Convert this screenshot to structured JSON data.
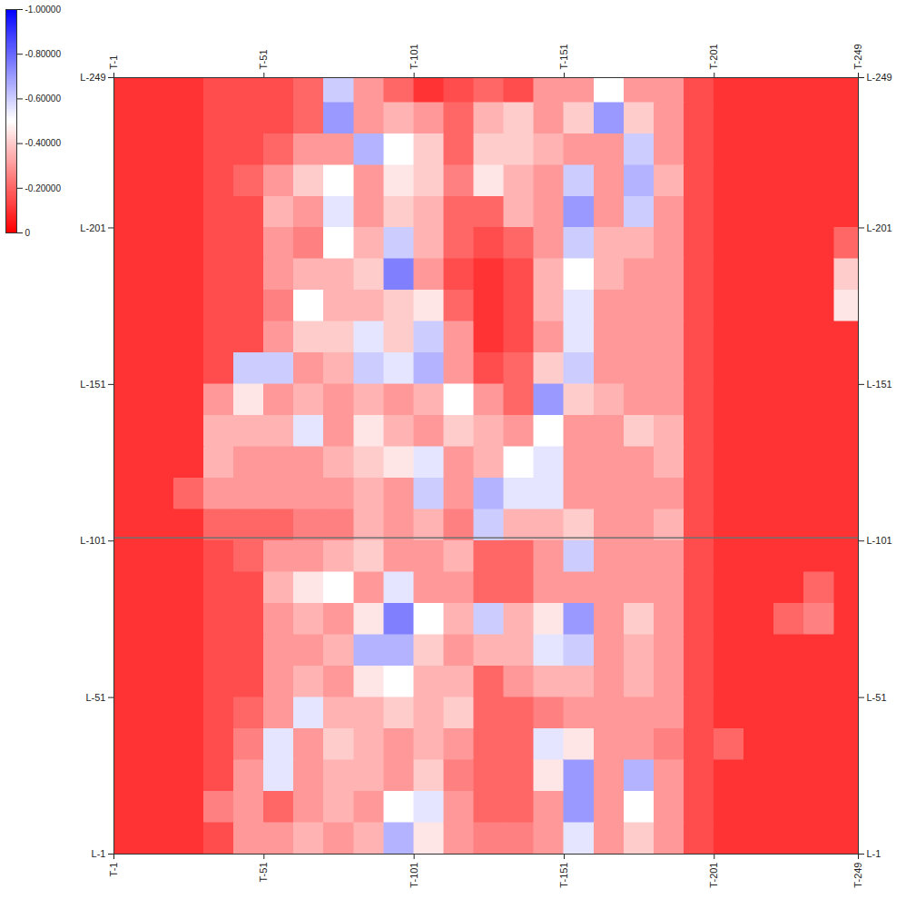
{
  "chart_data": {
    "type": "heatmap",
    "x": [
      1,
      11,
      21,
      31,
      41,
      51,
      61,
      71,
      81,
      91,
      101,
      111,
      121,
      131,
      141,
      151,
      161,
      171,
      181,
      191,
      201,
      211,
      221,
      231,
      241,
      249
    ],
    "y": [
      249,
      241,
      231,
      221,
      211,
      201,
      191,
      181,
      171,
      161,
      151,
      141,
      131,
      121,
      111,
      101,
      91,
      81,
      71,
      61,
      51,
      41,
      31,
      21,
      11,
      1
    ],
    "values": [
      [
        -0.1,
        -0.1,
        -0.1,
        -0.15,
        -0.15,
        -0.15,
        -0.2,
        -0.6,
        -0.3,
        -0.2,
        -0.1,
        -0.15,
        -0.2,
        -0.15,
        -0.3,
        -0.3,
        -0.5,
        -0.3,
        -0.3,
        -0.15,
        -0.1,
        -0.1,
        -0.1,
        -0.1,
        -0.1
      ],
      [
        -0.1,
        -0.1,
        -0.1,
        -0.15,
        -0.15,
        -0.15,
        -0.2,
        -0.7,
        -0.3,
        -0.35,
        -0.3,
        -0.2,
        -0.35,
        -0.4,
        -0.3,
        -0.4,
        -0.7,
        -0.4,
        -0.3,
        -0.15,
        -0.1,
        -0.1,
        -0.1,
        -0.1,
        -0.1
      ],
      [
        -0.1,
        -0.1,
        -0.1,
        -0.15,
        -0.15,
        -0.2,
        -0.3,
        -0.3,
        -0.65,
        -0.5,
        -0.4,
        -0.2,
        -0.4,
        -0.4,
        -0.35,
        -0.3,
        -0.3,
        -0.6,
        -0.3,
        -0.15,
        -0.1,
        -0.1,
        -0.1,
        -0.1,
        -0.1
      ],
      [
        -0.1,
        -0.1,
        -0.1,
        -0.15,
        -0.2,
        -0.3,
        -0.4,
        -0.5,
        -0.3,
        -0.45,
        -0.4,
        -0.25,
        -0.45,
        -0.35,
        -0.3,
        -0.6,
        -0.3,
        -0.65,
        -0.35,
        -0.15,
        -0.1,
        -0.1,
        -0.1,
        -0.1,
        -0.1
      ],
      [
        -0.1,
        -0.1,
        -0.1,
        -0.15,
        -0.15,
        -0.35,
        -0.3,
        -0.55,
        -0.3,
        -0.4,
        -0.35,
        -0.2,
        -0.2,
        -0.35,
        -0.3,
        -0.7,
        -0.3,
        -0.6,
        -0.3,
        -0.15,
        -0.1,
        -0.1,
        -0.1,
        -0.1,
        -0.1
      ],
      [
        -0.1,
        -0.1,
        -0.1,
        -0.15,
        -0.15,
        -0.3,
        -0.25,
        -0.5,
        -0.35,
        -0.6,
        -0.35,
        -0.2,
        -0.15,
        -0.2,
        -0.3,
        -0.6,
        -0.35,
        -0.35,
        -0.3,
        -0.15,
        -0.1,
        -0.1,
        -0.1,
        -0.1,
        -0.2
      ],
      [
        -0.1,
        -0.1,
        -0.1,
        -0.15,
        -0.15,
        -0.3,
        -0.35,
        -0.35,
        -0.4,
        -0.75,
        -0.3,
        -0.15,
        -0.1,
        -0.15,
        -0.35,
        -0.5,
        -0.35,
        -0.3,
        -0.3,
        -0.15,
        -0.1,
        -0.1,
        -0.1,
        -0.1,
        -0.4
      ],
      [
        -0.1,
        -0.1,
        -0.1,
        -0.15,
        -0.15,
        -0.25,
        -0.5,
        -0.35,
        -0.35,
        -0.4,
        -0.45,
        -0.2,
        -0.1,
        -0.15,
        -0.35,
        -0.55,
        -0.3,
        -0.3,
        -0.3,
        -0.15,
        -0.1,
        -0.1,
        -0.1,
        -0.1,
        -0.45
      ],
      [
        -0.1,
        -0.1,
        -0.1,
        -0.15,
        -0.15,
        -0.3,
        -0.4,
        -0.4,
        -0.55,
        -0.4,
        -0.6,
        -0.3,
        -0.1,
        -0.15,
        -0.3,
        -0.55,
        -0.3,
        -0.3,
        -0.3,
        -0.15,
        -0.1,
        -0.1,
        -0.1,
        -0.1,
        -0.1
      ],
      [
        -0.1,
        -0.1,
        -0.1,
        -0.15,
        -0.6,
        -0.6,
        -0.3,
        -0.35,
        -0.6,
        -0.55,
        -0.65,
        -0.3,
        -0.15,
        -0.2,
        -0.4,
        -0.6,
        -0.3,
        -0.3,
        -0.3,
        -0.15,
        -0.1,
        -0.1,
        -0.1,
        -0.1,
        -0.1
      ],
      [
        -0.1,
        -0.1,
        -0.1,
        -0.3,
        -0.45,
        -0.3,
        -0.35,
        -0.3,
        -0.35,
        -0.3,
        -0.35,
        -0.5,
        -0.3,
        -0.2,
        -0.7,
        -0.4,
        -0.35,
        -0.3,
        -0.3,
        -0.15,
        -0.1,
        -0.1,
        -0.1,
        -0.1,
        -0.1
      ],
      [
        -0.1,
        -0.1,
        -0.1,
        -0.35,
        -0.35,
        -0.35,
        -0.55,
        -0.3,
        -0.45,
        -0.35,
        -0.3,
        -0.4,
        -0.35,
        -0.3,
        -0.5,
        -0.3,
        -0.3,
        -0.4,
        -0.35,
        -0.15,
        -0.1,
        -0.1,
        -0.1,
        -0.1,
        -0.1
      ],
      [
        -0.1,
        -0.1,
        -0.1,
        -0.35,
        -0.3,
        -0.3,
        -0.3,
        -0.35,
        -0.4,
        -0.45,
        -0.55,
        -0.3,
        -0.35,
        -0.5,
        -0.55,
        -0.3,
        -0.3,
        -0.3,
        -0.35,
        -0.15,
        -0.1,
        -0.1,
        -0.1,
        -0.1,
        -0.1
      ],
      [
        -0.1,
        -0.1,
        -0.2,
        -0.3,
        -0.3,
        -0.3,
        -0.3,
        -0.3,
        -0.35,
        -0.3,
        -0.6,
        -0.3,
        -0.65,
        -0.55,
        -0.55,
        -0.3,
        -0.3,
        -0.3,
        -0.3,
        -0.15,
        -0.1,
        -0.1,
        -0.1,
        -0.1,
        -0.1
      ],
      [
        -0.1,
        -0.1,
        -0.1,
        -0.2,
        -0.2,
        -0.2,
        -0.25,
        -0.25,
        -0.35,
        -0.3,
        -0.35,
        -0.25,
        -0.6,
        -0.35,
        -0.35,
        -0.4,
        -0.3,
        -0.3,
        -0.35,
        -0.15,
        -0.1,
        -0.1,
        -0.1,
        -0.1,
        -0.1
      ],
      [
        -0.1,
        -0.1,
        -0.1,
        -0.15,
        -0.2,
        -0.3,
        -0.3,
        -0.35,
        -0.4,
        -0.3,
        -0.3,
        -0.35,
        -0.2,
        -0.2,
        -0.3,
        -0.6,
        -0.3,
        -0.3,
        -0.3,
        -0.15,
        -0.1,
        -0.1,
        -0.1,
        -0.1,
        -0.1
      ],
      [
        -0.1,
        -0.1,
        -0.1,
        -0.15,
        -0.15,
        -0.35,
        -0.45,
        -0.5,
        -0.3,
        -0.55,
        -0.3,
        -0.3,
        -0.2,
        -0.2,
        -0.3,
        -0.3,
        -0.3,
        -0.3,
        -0.3,
        -0.15,
        -0.1,
        -0.1,
        -0.1,
        -0.2,
        -0.1
      ],
      [
        -0.1,
        -0.1,
        -0.1,
        -0.15,
        -0.15,
        -0.3,
        -0.35,
        -0.3,
        -0.45,
        -0.75,
        -0.5,
        -0.35,
        -0.6,
        -0.35,
        -0.45,
        -0.7,
        -0.3,
        -0.4,
        -0.3,
        -0.15,
        -0.1,
        -0.1,
        -0.2,
        -0.25,
        -0.1
      ],
      [
        -0.1,
        -0.1,
        -0.1,
        -0.15,
        -0.15,
        -0.3,
        -0.3,
        -0.35,
        -0.65,
        -0.65,
        -0.4,
        -0.3,
        -0.35,
        -0.35,
        -0.55,
        -0.6,
        -0.3,
        -0.35,
        -0.3,
        -0.15,
        -0.1,
        -0.1,
        -0.1,
        -0.1,
        -0.1
      ],
      [
        -0.1,
        -0.1,
        -0.1,
        -0.15,
        -0.15,
        -0.3,
        -0.35,
        -0.3,
        -0.45,
        -0.5,
        -0.35,
        -0.35,
        -0.2,
        -0.3,
        -0.35,
        -0.35,
        -0.3,
        -0.35,
        -0.3,
        -0.15,
        -0.1,
        -0.1,
        -0.1,
        -0.1,
        -0.1
      ],
      [
        -0.1,
        -0.1,
        -0.1,
        -0.15,
        -0.2,
        -0.3,
        -0.55,
        -0.35,
        -0.35,
        -0.4,
        -0.35,
        -0.4,
        -0.2,
        -0.2,
        -0.25,
        -0.3,
        -0.3,
        -0.3,
        -0.3,
        -0.15,
        -0.1,
        -0.1,
        -0.1,
        -0.1,
        -0.1
      ],
      [
        -0.1,
        -0.1,
        -0.1,
        -0.15,
        -0.25,
        -0.55,
        -0.3,
        -0.4,
        -0.35,
        -0.3,
        -0.35,
        -0.3,
        -0.2,
        -0.2,
        -0.55,
        -0.45,
        -0.3,
        -0.3,
        -0.25,
        -0.15,
        -0.2,
        -0.1,
        -0.1,
        -0.1,
        -0.1
      ],
      [
        -0.1,
        -0.1,
        -0.1,
        -0.15,
        -0.3,
        -0.55,
        -0.3,
        -0.35,
        -0.35,
        -0.3,
        -0.4,
        -0.25,
        -0.2,
        -0.2,
        -0.45,
        -0.7,
        -0.3,
        -0.65,
        -0.3,
        -0.15,
        -0.1,
        -0.1,
        -0.1,
        -0.1,
        -0.1
      ],
      [
        -0.1,
        -0.1,
        -0.1,
        -0.25,
        -0.3,
        -0.2,
        -0.3,
        -0.35,
        -0.3,
        -0.5,
        -0.55,
        -0.3,
        -0.2,
        -0.2,
        -0.3,
        -0.7,
        -0.3,
        -0.5,
        -0.3,
        -0.15,
        -0.1,
        -0.1,
        -0.1,
        -0.1,
        -0.1
      ],
      [
        -0.1,
        -0.1,
        -0.1,
        -0.15,
        -0.3,
        -0.3,
        -0.35,
        -0.3,
        -0.35,
        -0.65,
        -0.45,
        -0.3,
        -0.25,
        -0.25,
        -0.3,
        -0.55,
        -0.3,
        -0.4,
        -0.3,
        -0.15,
        -0.1,
        -0.1,
        -0.1,
        -0.1,
        -0.1
      ]
    ],
    "xlim": [
      1,
      249
    ],
    "ylim": [
      1,
      249
    ],
    "xticks": [
      {
        "value": 1,
        "label": "T-1"
      },
      {
        "value": 51,
        "label": "T-51"
      },
      {
        "value": 101,
        "label": "T-101"
      },
      {
        "value": 151,
        "label": "T-151"
      },
      {
        "value": 201,
        "label": "T-201"
      },
      {
        "value": 249,
        "label": "T-249"
      }
    ],
    "yticks": [
      {
        "value": 1,
        "label": "L-1"
      },
      {
        "value": 51,
        "label": "L-51"
      },
      {
        "value": 101,
        "label": "L-101"
      },
      {
        "value": 151,
        "label": "L-151"
      },
      {
        "value": 201,
        "label": "L-201"
      },
      {
        "value": 249,
        "label": "L-249"
      }
    ],
    "colorbar": {
      "range": [
        -1,
        0
      ],
      "ticks": [
        {
          "value": -1,
          "label": "-1.00000"
        },
        {
          "value": -0.8,
          "label": "-0.80000"
        },
        {
          "value": -0.6,
          "label": "-0.60000"
        },
        {
          "value": -0.4,
          "label": "-0.40000"
        },
        {
          "value": -0.2,
          "label": "-0.20000"
        },
        0
      ],
      "colors": [
        "#0000ff",
        "#ffffff",
        "#ff0000"
      ]
    },
    "reference_line": {
      "y": 102
    }
  }
}
